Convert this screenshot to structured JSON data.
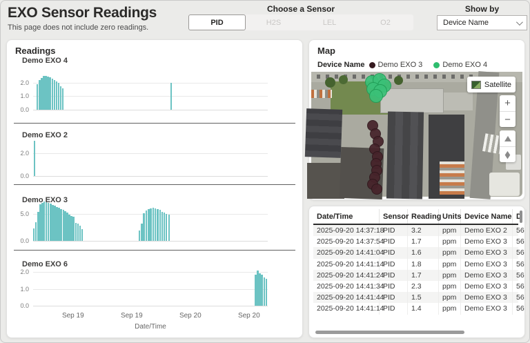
{
  "header": {
    "title": "EXO Sensor Readings",
    "subtitle": "This page does not include zero readings.",
    "sensor_label": "Choose a Sensor",
    "sensors": [
      {
        "label": "PID",
        "selected": true
      },
      {
        "label": "H2S",
        "selected": false
      },
      {
        "label": "LEL",
        "selected": false
      },
      {
        "label": "O2",
        "selected": false
      }
    ],
    "show_by_label": "Show by",
    "show_by_value": "Device Name"
  },
  "readings": {
    "title": "Readings"
  },
  "chart_data": [
    {
      "type": "bar",
      "title": "Demo EXO 4",
      "ylabel": "",
      "ylim": [
        0,
        2.5
      ],
      "y_ticks": [
        0,
        1,
        2
      ],
      "y_tick_labels": [
        "0.0",
        "1.0",
        "2.0"
      ],
      "grid": true,
      "bar_color": "#6cc3c3",
      "bars": [
        [
          0.015,
          1.9
        ],
        [
          0.024,
          2.2
        ],
        [
          0.033,
          2.35
        ],
        [
          0.042,
          2.5
        ],
        [
          0.051,
          2.5
        ],
        [
          0.06,
          2.45
        ],
        [
          0.069,
          2.4
        ],
        [
          0.078,
          2.3
        ],
        [
          0.087,
          2.2
        ],
        [
          0.096,
          2.1
        ],
        [
          0.105,
          2.0
        ],
        [
          0.114,
          1.75
        ],
        [
          0.123,
          1.6
        ],
        [
          0.585,
          2.0
        ]
      ]
    },
    {
      "type": "bar",
      "title": "Demo EXO 2",
      "ylabel": "",
      "ylim": [
        0,
        3.2
      ],
      "y_ticks": [
        0,
        2
      ],
      "y_tick_labels": [
        "0.0",
        "2.0"
      ],
      "grid": true,
      "bar_color": "#6cc3c3",
      "bars": [
        [
          0.002,
          3.1
        ]
      ]
    },
    {
      "type": "bar",
      "title": "Demo EXO 3",
      "ylabel": "",
      "ylim": [
        0,
        7.4
      ],
      "y_ticks": [
        0,
        5
      ],
      "y_tick_labels": [
        "0.0",
        "5.0"
      ],
      "grid": true,
      "bar_color": "#6cc3c3",
      "bars": [
        [
          0.0,
          2.3
        ],
        [
          0.009,
          3.5
        ],
        [
          0.018,
          5.4
        ],
        [
          0.027,
          6.9
        ],
        [
          0.036,
          7.2
        ],
        [
          0.044,
          7.4
        ],
        [
          0.053,
          7.3
        ],
        [
          0.062,
          7.1
        ],
        [
          0.071,
          7.0
        ],
        [
          0.08,
          6.8
        ],
        [
          0.089,
          6.6
        ],
        [
          0.098,
          6.4
        ],
        [
          0.107,
          6.2
        ],
        [
          0.116,
          6.0
        ],
        [
          0.125,
          5.8
        ],
        [
          0.133,
          5.6
        ],
        [
          0.142,
          5.3
        ],
        [
          0.151,
          5.0
        ],
        [
          0.16,
          4.7
        ],
        [
          0.169,
          4.5
        ],
        [
          0.178,
          3.4
        ],
        [
          0.187,
          3.2
        ],
        [
          0.196,
          2.9
        ],
        [
          0.205,
          2.2
        ],
        [
          0.45,
          1.9
        ],
        [
          0.46,
          3.3
        ],
        [
          0.469,
          5.2
        ],
        [
          0.479,
          5.7
        ],
        [
          0.489,
          6.0
        ],
        [
          0.498,
          6.1
        ],
        [
          0.508,
          6.2
        ],
        [
          0.517,
          6.1
        ],
        [
          0.527,
          6.0
        ],
        [
          0.537,
          5.8
        ],
        [
          0.546,
          5.5
        ],
        [
          0.556,
          5.3
        ],
        [
          0.565,
          5.1
        ],
        [
          0.575,
          5.0
        ]
      ]
    },
    {
      "type": "bar",
      "title": "Demo EXO 6",
      "ylabel": "",
      "ylim": [
        0,
        2.1
      ],
      "y_ticks": [
        0,
        1,
        2
      ],
      "y_tick_labels": [
        "0.0",
        "1.0",
        "2.0"
      ],
      "grid": true,
      "bar_color": "#6cc3c3",
      "xlabel": "Date/Time",
      "x_ticks": [
        {
          "pos": 0.17,
          "label": "Sep 19"
        },
        {
          "pos": 0.42,
          "label": "Sep 19"
        },
        {
          "pos": 0.67,
          "label": "Sep 20"
        },
        {
          "pos": 0.92,
          "label": "Sep 20"
        }
      ],
      "bars": [
        [
          0.945,
          1.85
        ],
        [
          0.954,
          2.1
        ],
        [
          0.963,
          1.95
        ],
        [
          0.972,
          1.85
        ],
        [
          0.981,
          1.7
        ],
        [
          0.99,
          1.6
        ]
      ]
    }
  ],
  "map": {
    "title": "Map",
    "legend_label": "Device Name",
    "legend": [
      {
        "label": "Demo EXO 3",
        "color": "#35191f"
      },
      {
        "label": "Demo EXO 4",
        "color": "#2ebd6e"
      }
    ],
    "satellite_button": "Satellite",
    "zoom_in": "+",
    "zoom_out": "−",
    "markers": [
      {
        "series": "Demo EXO 4",
        "color": "#3bc178",
        "border": "#1f9c56",
        "size": 20,
        "points": [
          [
            88,
            15
          ],
          [
            99,
            12
          ],
          [
            106,
            20
          ],
          [
            90,
            25
          ],
          [
            100,
            28
          ],
          [
            94,
            35
          ]
        ]
      },
      {
        "series": "Demo EXO 3",
        "color": "#46232a",
        "border": "#2f171c",
        "size": 16,
        "points": [
          [
            89,
            78
          ],
          [
            93,
            90
          ],
          [
            97,
            101
          ],
          [
            92,
            112
          ],
          [
            96,
            123
          ],
          [
            94,
            133
          ],
          [
            95,
            143
          ],
          [
            92,
            153
          ],
          [
            89,
            163
          ],
          [
            95,
            170
          ]
        ]
      }
    ]
  },
  "table": {
    "columns": [
      "Date/Time",
      "Sensor",
      "Reading",
      "Units",
      "Device Name",
      "D"
    ],
    "rows": [
      [
        "2025-09-20 14:37:18",
        "PID",
        "3.2",
        "ppm",
        "Demo EXO 2",
        "56"
      ],
      [
        "2025-09-20 14:37:54",
        "PID",
        "1.7",
        "ppm",
        "Demo EXO 3",
        "56"
      ],
      [
        "2025-09-20 14:41:04",
        "PID",
        "1.6",
        "ppm",
        "Demo EXO 3",
        "56"
      ],
      [
        "2025-09-20 14:41:14",
        "PID",
        "1.8",
        "ppm",
        "Demo EXO 3",
        "56"
      ],
      [
        "2025-09-20 14:41:24",
        "PID",
        "1.7",
        "ppm",
        "Demo EXO 3",
        "56"
      ],
      [
        "2025-09-20 14:41:34",
        "PID",
        "2.3",
        "ppm",
        "Demo EXO 3",
        "56"
      ],
      [
        "2025-09-20 14:41:44",
        "PID",
        "1.5",
        "ppm",
        "Demo EXO 3",
        "56"
      ],
      [
        "2025-09-20 14:41:14",
        "PID",
        "1.4",
        "ppm",
        "Demo EXO 3",
        "56"
      ]
    ]
  }
}
